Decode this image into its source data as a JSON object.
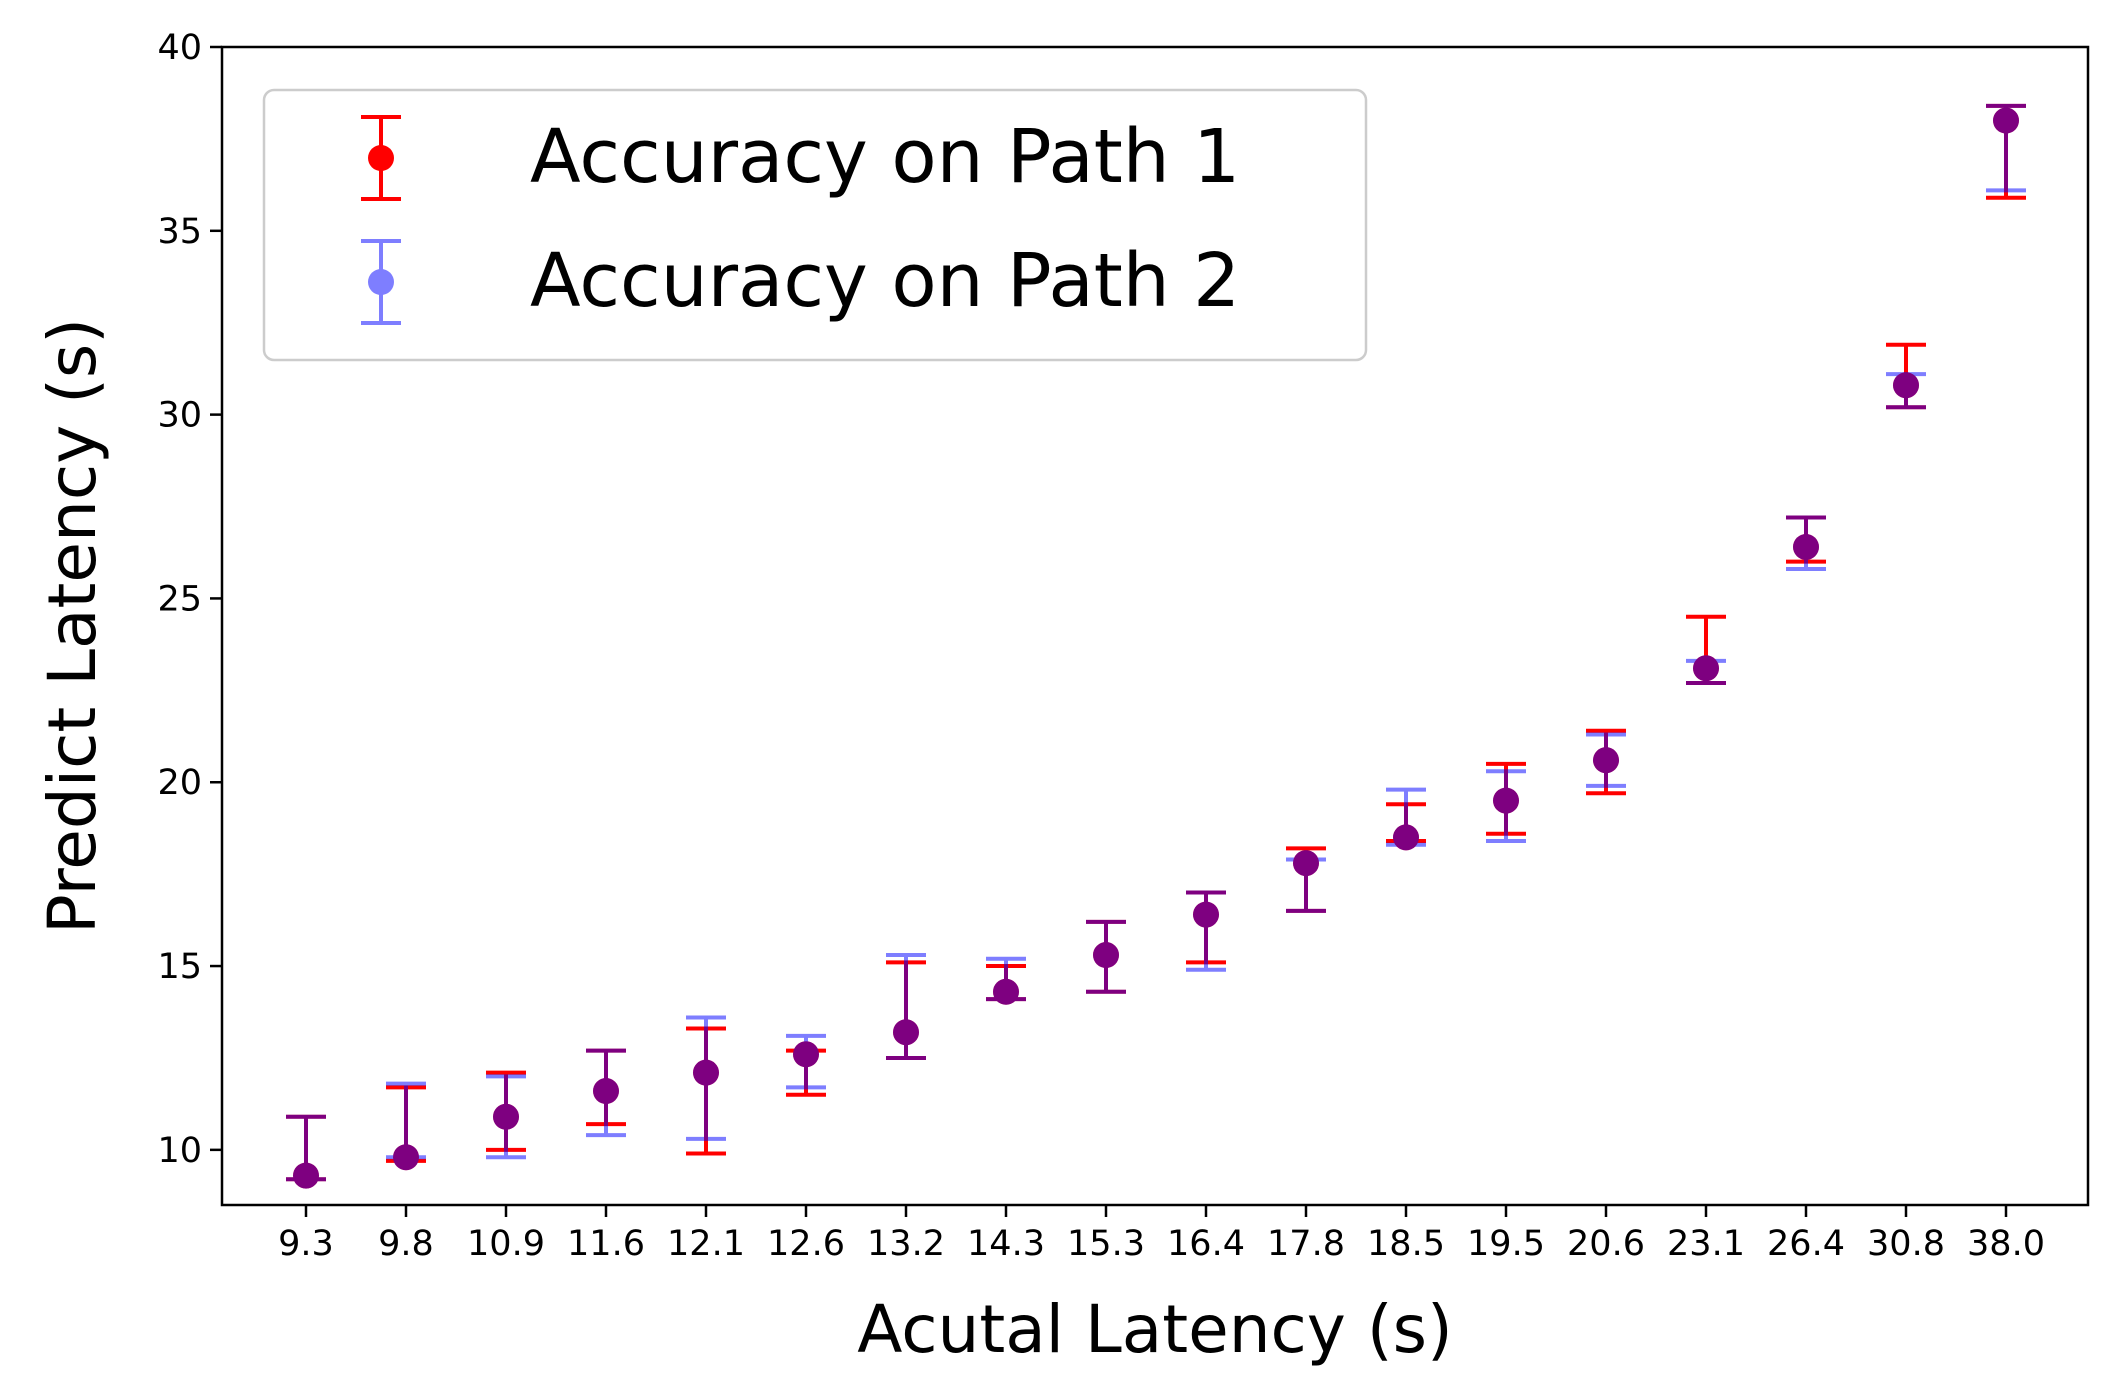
{
  "chart_data": {
    "type": "scatter",
    "title": "",
    "xlabel": "Acutal Latency (s)",
    "ylabel": "Predict Latency (s)",
    "ylim": [
      8.5,
      40
    ],
    "yticks": [
      "10",
      "15",
      "20",
      "25",
      "30",
      "35",
      "40"
    ],
    "categories": [
      "9.3",
      "9.8",
      "10.9",
      "11.6",
      "12.1",
      "12.6",
      "13.2",
      "14.3",
      "15.3",
      "16.4",
      "17.8",
      "18.5",
      "19.5",
      "20.6",
      "23.1",
      "26.4",
      "30.8",
      "38.0"
    ],
    "grid": false,
    "legend": "upper-left",
    "series": [
      {
        "name": "Accuracy on Path 1",
        "color": "#ff0000",
        "values": [
          9.3,
          9.8,
          10.9,
          11.6,
          12.1,
          12.6,
          13.2,
          14.3,
          15.3,
          16.4,
          17.8,
          18.5,
          19.5,
          20.6,
          23.1,
          26.4,
          30.8,
          38.0
        ],
        "err_low": [
          9.2,
          9.7,
          10.0,
          10.7,
          9.9,
          11.5,
          12.5,
          14.1,
          14.3,
          15.1,
          16.5,
          18.4,
          18.6,
          19.7,
          22.7,
          26.0,
          30.2,
          35.9
        ],
        "err_high": [
          10.9,
          11.7,
          12.1,
          12.7,
          13.3,
          12.7,
          15.1,
          15.0,
          16.2,
          17.0,
          18.2,
          19.4,
          20.5,
          21.4,
          24.5,
          27.2,
          31.9,
          38.4
        ]
      },
      {
        "name": "Accuracy on Path 2",
        "color": "#0000ff",
        "values": [
          9.3,
          9.8,
          10.9,
          11.6,
          12.1,
          12.6,
          13.2,
          14.3,
          15.3,
          16.4,
          17.8,
          18.5,
          19.5,
          20.6,
          23.1,
          26.4,
          30.8,
          38.0
        ],
        "err_low": [
          9.2,
          9.8,
          9.8,
          10.4,
          10.3,
          11.7,
          12.5,
          14.1,
          14.3,
          14.9,
          16.5,
          18.3,
          18.4,
          19.9,
          22.7,
          25.8,
          30.2,
          36.1
        ],
        "err_high": [
          10.9,
          11.8,
          12.0,
          12.7,
          13.6,
          13.1,
          15.3,
          15.2,
          16.2,
          17.0,
          17.9,
          19.8,
          20.3,
          21.3,
          23.3,
          27.2,
          31.1,
          38.4
        ]
      }
    ]
  }
}
